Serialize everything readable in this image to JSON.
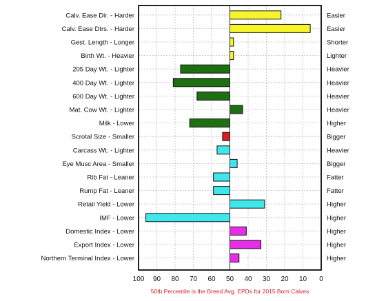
{
  "chart_data": {
    "type": "bar",
    "orientation": "horizontal",
    "caption": "50th Percentile is the Breed Avg. EPDs for 2015 Born Calves",
    "xlim": [
      100,
      0
    ],
    "xticks": [
      "100",
      "90",
      "80",
      "70",
      "60",
      "50",
      "40",
      "30",
      "20",
      "10",
      "0"
    ],
    "xtick_values": [
      100,
      90,
      80,
      70,
      60,
      50,
      40,
      30,
      20,
      10,
      0
    ],
    "baseline": 50,
    "grid": true,
    "bars": [
      {
        "left_label": "Calv. Ease Dir. - Harder",
        "right_label": "Easier",
        "value": 22,
        "color": "#f5f52a"
      },
      {
        "left_label": "Calv. Ease Dtrs. - Harder",
        "right_label": "Easier",
        "value": 6,
        "color": "#f5f52a"
      },
      {
        "left_label": "Gest. Length - Longer",
        "right_label": "Shorter",
        "value": 48,
        "color": "#f5f52a"
      },
      {
        "left_label": "Birth Wt. - Heavier",
        "right_label": "Lighter",
        "value": 48,
        "color": "#f5f52a"
      },
      {
        "left_label": "205 Day Wt. - Lighter",
        "right_label": "Heavier",
        "value": 77,
        "color": "#1e6e12"
      },
      {
        "left_label": "400 Day Wt. - Lighter",
        "right_label": "Heavier",
        "value": 81,
        "color": "#1e6e12"
      },
      {
        "left_label": "600 Day Wt. - Lighter",
        "right_label": "Heavier",
        "value": 68,
        "color": "#1e6e12"
      },
      {
        "left_label": "Mat. Cow Wt. - Lighter",
        "right_label": "Heavier",
        "value": 43,
        "color": "#1e6e12"
      },
      {
        "left_label": "Milk - Lower",
        "right_label": "Higher",
        "value": 72,
        "color": "#1e6e12"
      },
      {
        "left_label": "Scrotal Size - Smaller",
        "right_label": "Bigger",
        "value": 54,
        "color": "#d81e1e"
      },
      {
        "left_label": "Carcass Wt. - Lighter",
        "right_label": "Heavier",
        "value": 57,
        "color": "#3fe6ea"
      },
      {
        "left_label": "Eye Musc Area - Smaller",
        "right_label": "Bigger",
        "value": 46,
        "color": "#3fe6ea"
      },
      {
        "left_label": "Rib Fat - Leaner",
        "right_label": "Fatter",
        "value": 59,
        "color": "#3fe6ea"
      },
      {
        "left_label": "Rump Fat - Leaner",
        "right_label": "Fatter",
        "value": 59,
        "color": "#3fe6ea"
      },
      {
        "left_label": "Retail Yield - Lower",
        "right_label": "Higher",
        "value": 31,
        "color": "#3fe6ea"
      },
      {
        "left_label": "IMF - Lower",
        "right_label": "Higher",
        "value": 96,
        "color": "#3fe6ea"
      },
      {
        "left_label": "Domestic Index - Lower",
        "right_label": "Higher",
        "value": 41,
        "color": "#e62ee6"
      },
      {
        "left_label": "Export Index - Lower",
        "right_label": "Higher",
        "value": 33,
        "color": "#e62ee6"
      },
      {
        "left_label": "Northern Terminal Index - Lower",
        "right_label": "Higher",
        "value": 45,
        "color": "#e62ee6"
      }
    ]
  }
}
